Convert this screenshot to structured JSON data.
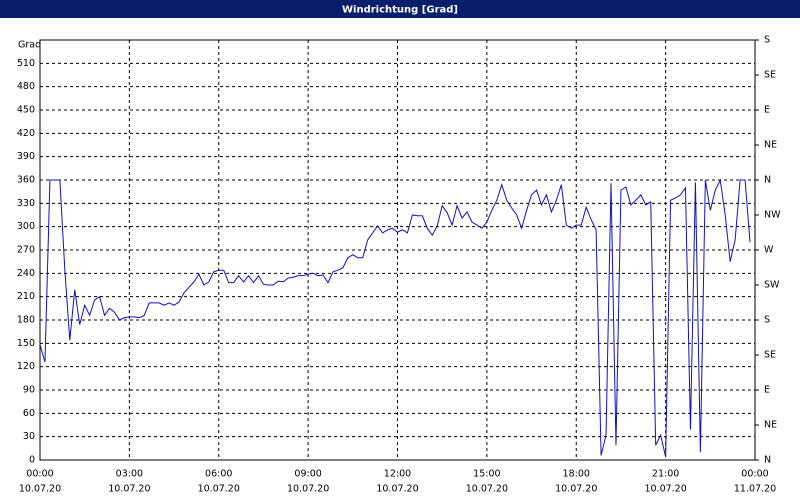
{
  "chart_data": {
    "type": "line",
    "title": "Windrichtung [Grad]",
    "y_label": "Grad",
    "color": "#1010c8",
    "grid": true,
    "xlim": [
      0,
      1440
    ],
    "xticks": [
      {
        "value": 0,
        "label": "00:00"
      },
      {
        "value": 180,
        "label": "03:00"
      },
      {
        "value": 360,
        "label": "06:00"
      },
      {
        "value": 540,
        "label": "09:00"
      },
      {
        "value": 720,
        "label": "12:00"
      },
      {
        "value": 900,
        "label": "15:00"
      },
      {
        "value": 1080,
        "label": "18:00"
      },
      {
        "value": 1260,
        "label": "21:00"
      },
      {
        "value": 1440,
        "label": "00:00"
      }
    ],
    "xtick_dates": [
      "10.07.20",
      "10.07.20",
      "10.07.20",
      "10.07.20",
      "10.07.20",
      "10.07.20",
      "10.07.20",
      "10.07.20",
      "11.07.20"
    ],
    "ylim": [
      0,
      540
    ],
    "yticks": [
      0,
      30,
      60,
      90,
      120,
      150,
      180,
      210,
      240,
      270,
      300,
      330,
      360,
      390,
      420,
      450,
      480,
      510
    ],
    "y2lim": [
      0,
      540
    ],
    "y2ticks": [
      {
        "value": 0,
        "label": "N"
      },
      {
        "value": 45,
        "label": "NE"
      },
      {
        "value": 90,
        "label": "E"
      },
      {
        "value": 135,
        "label": "SE"
      },
      {
        "value": 180,
        "label": "S"
      },
      {
        "value": 225,
        "label": "SW"
      },
      {
        "value": 270,
        "label": "W"
      },
      {
        "value": 315,
        "label": "NW"
      },
      {
        "value": 360,
        "label": "N"
      },
      {
        "value": 405,
        "label": "NE"
      },
      {
        "value": 450,
        "label": "E"
      },
      {
        "value": 495,
        "label": "SE"
      },
      {
        "value": 540,
        "label": "S"
      }
    ],
    "x": [
      0,
      10,
      20,
      30,
      40,
      50,
      60,
      70,
      80,
      90,
      100,
      110,
      120,
      130,
      140,
      150,
      160,
      170,
      180,
      190,
      200,
      210,
      220,
      230,
      240,
      250,
      260,
      270,
      280,
      290,
      300,
      310,
      320,
      330,
      340,
      350,
      360,
      370,
      380,
      390,
      400,
      410,
      420,
      430,
      440,
      450,
      460,
      470,
      480,
      490,
      500,
      510,
      520,
      530,
      540,
      550,
      560,
      570,
      580,
      590,
      600,
      610,
      620,
      630,
      640,
      650,
      660,
      670,
      680,
      690,
      700,
      710,
      720,
      730,
      740,
      750,
      760,
      770,
      780,
      790,
      800,
      810,
      820,
      830,
      840,
      850,
      860,
      870,
      880,
      890,
      900,
      910,
      920,
      930,
      940,
      950,
      960,
      970,
      980,
      990,
      1000,
      1010,
      1020,
      1030,
      1040,
      1050,
      1060,
      1070,
      1080,
      1090,
      1100,
      1110,
      1120,
      1130,
      1140,
      1150,
      1160,
      1170,
      1180,
      1190,
      1200,
      1210,
      1220,
      1230,
      1240,
      1250,
      1260,
      1270,
      1280,
      1290,
      1300,
      1310,
      1320,
      1330,
      1340,
      1350,
      1360,
      1370,
      1380,
      1390,
      1400,
      1410,
      1420,
      1430
    ],
    "values": [
      148,
      126,
      360,
      360,
      360,
      244,
      154,
      219,
      174,
      199,
      186,
      206,
      210,
      186,
      195,
      190,
      180,
      183,
      184,
      184,
      183,
      186,
      202,
      202,
      202,
      199,
      202,
      199,
      203,
      215,
      222,
      229,
      239,
      225,
      229,
      242,
      244,
      244,
      228,
      228,
      237,
      229,
      237,
      228,
      237,
      226,
      225,
      225,
      230,
      229,
      234,
      235,
      237,
      237,
      239,
      240,
      237,
      238,
      228,
      242,
      244,
      247,
      260,
      264,
      260,
      260,
      283,
      292,
      301,
      292,
      296,
      298,
      293,
      296,
      292,
      315,
      314,
      314,
      298,
      289,
      301,
      327,
      318,
      302,
      327,
      311,
      319,
      306,
      302,
      298,
      306,
      321,
      334,
      354,
      334,
      324,
      315,
      298,
      321,
      341,
      347,
      328,
      341,
      319,
      334,
      354,
      302,
      298,
      302,
      302,
      325,
      309,
      296,
      6,
      32,
      356,
      19,
      347,
      351,
      328,
      334,
      341,
      328,
      332,
      19,
      32,
      4,
      334,
      337,
      341,
      350,
      39,
      357,
      10,
      360,
      321,
      347,
      360,
      315,
      255,
      283,
      360,
      360,
      280
    ]
  }
}
